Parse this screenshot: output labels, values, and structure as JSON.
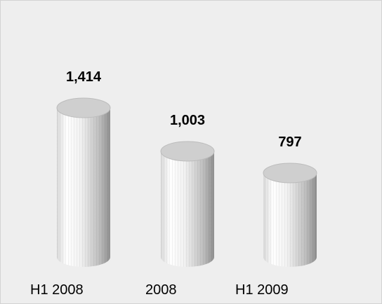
{
  "chart_data": {
    "type": "bar",
    "categories": [
      "H1 2008",
      "2008",
      "H1 2009"
    ],
    "values": [
      1414,
      1003,
      797
    ],
    "value_labels": [
      "1,414",
      "1,003",
      "797"
    ],
    "title": "",
    "xlabel": "",
    "ylabel": "",
    "grid": false,
    "legend": "none",
    "colors": {
      "background": "#eeeeee",
      "bar_light": "#ffffff",
      "bar_dark": "#9a9a9a",
      "top": "#cfcfcf",
      "text": "#000000"
    }
  }
}
